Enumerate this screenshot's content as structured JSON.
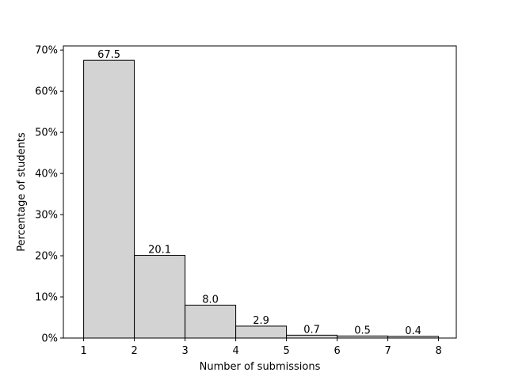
{
  "chart_data": {
    "type": "bar",
    "bins": [
      {
        "start": 1,
        "end": 2,
        "value": 67.5,
        "label": "67.5"
      },
      {
        "start": 2,
        "end": 3,
        "value": 20.1,
        "label": "20.1"
      },
      {
        "start": 3,
        "end": 4,
        "value": 8.0,
        "label": "8.0"
      },
      {
        "start": 4,
        "end": 5,
        "value": 2.9,
        "label": "2.9"
      },
      {
        "start": 5,
        "end": 6,
        "value": 0.7,
        "label": "0.7"
      },
      {
        "start": 6,
        "end": 7,
        "value": 0.5,
        "label": "0.5"
      },
      {
        "start": 7,
        "end": 8,
        "value": 0.4,
        "label": "0.4"
      }
    ],
    "title": "",
    "xlabel": "Number of submissions",
    "ylabel": "Percentage of students",
    "xlim": [
      0.6,
      8.35
    ],
    "ylim": [
      0,
      71
    ],
    "xticks": [
      1,
      2,
      3,
      4,
      5,
      6,
      7,
      8
    ],
    "yticks": [
      0,
      10,
      20,
      30,
      40,
      50,
      60,
      70
    ],
    "ytick_suffix": "%",
    "bar_color": "#d3d3d3",
    "edge_color": "#000000",
    "grid": false
  }
}
